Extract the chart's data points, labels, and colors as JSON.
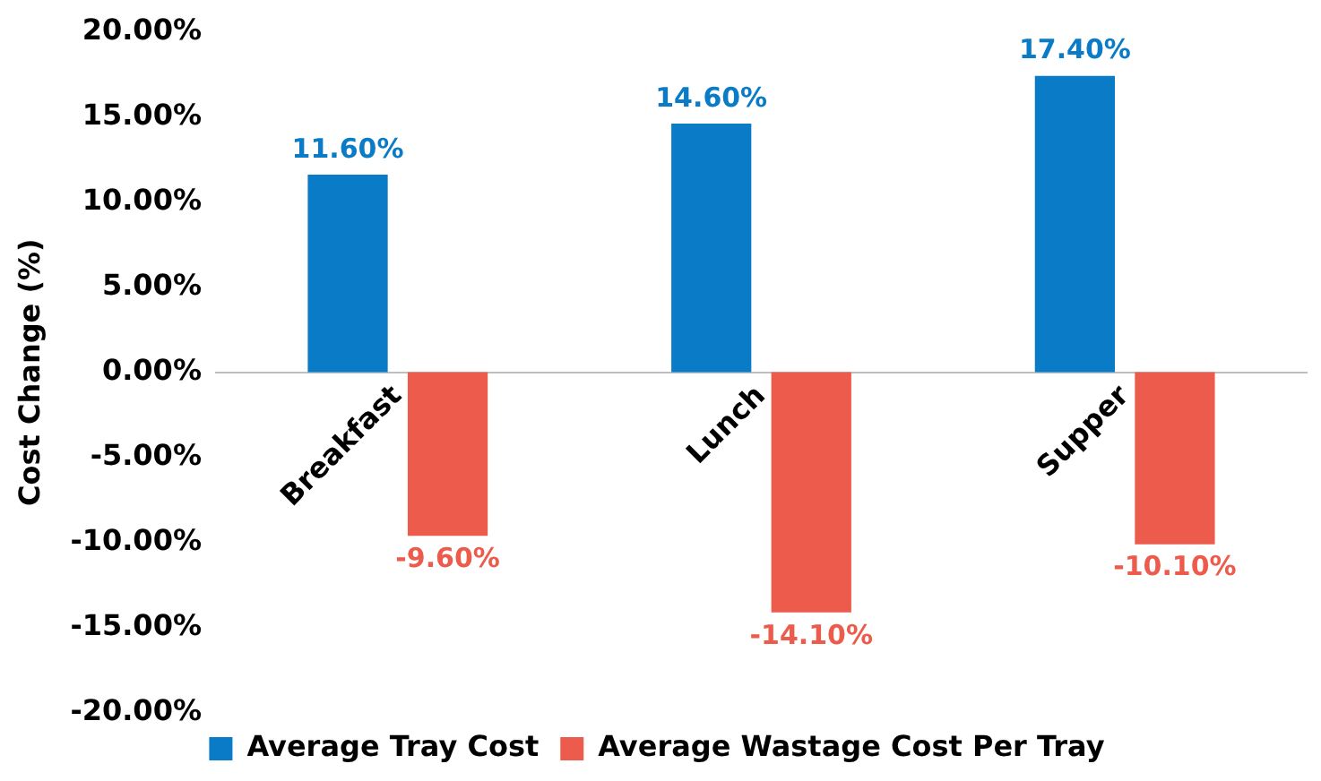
{
  "chart_data": {
    "type": "bar",
    "ylabel": "Cost Change (%)",
    "categories": [
      "Breakfast",
      "Lunch",
      "Supper"
    ],
    "series": [
      {
        "name": "Average Tray Cost",
        "color": "#0a7cc7",
        "values": [
          11.6,
          14.6,
          17.4
        ],
        "value_labels": [
          "11.60%",
          "14.60%",
          "17.40%"
        ]
      },
      {
        "name": "Average Wastage Cost Per Tray",
        "color": "#ec5b4b",
        "values": [
          -9.6,
          -14.1,
          -10.1
        ],
        "value_labels": [
          "-9.60%",
          "-14.10%",
          "-10.10%"
        ]
      }
    ],
    "ylim": [
      -20,
      20
    ],
    "yticks": [
      {
        "value": -20,
        "label": "-20.00%"
      },
      {
        "value": -15,
        "label": "-15.00%"
      },
      {
        "value": -10,
        "label": "-10.00%"
      },
      {
        "value": -5,
        "label": "-5.00%"
      },
      {
        "value": 0,
        "label": "0.00%"
      },
      {
        "value": 5,
        "label": "5.00%"
      },
      {
        "value": 10,
        "label": "10.00%"
      },
      {
        "value": 15,
        "label": "15.00%"
      },
      {
        "value": 20,
        "label": "20.00%"
      }
    ],
    "grid": false,
    "legend": "bottom"
  }
}
